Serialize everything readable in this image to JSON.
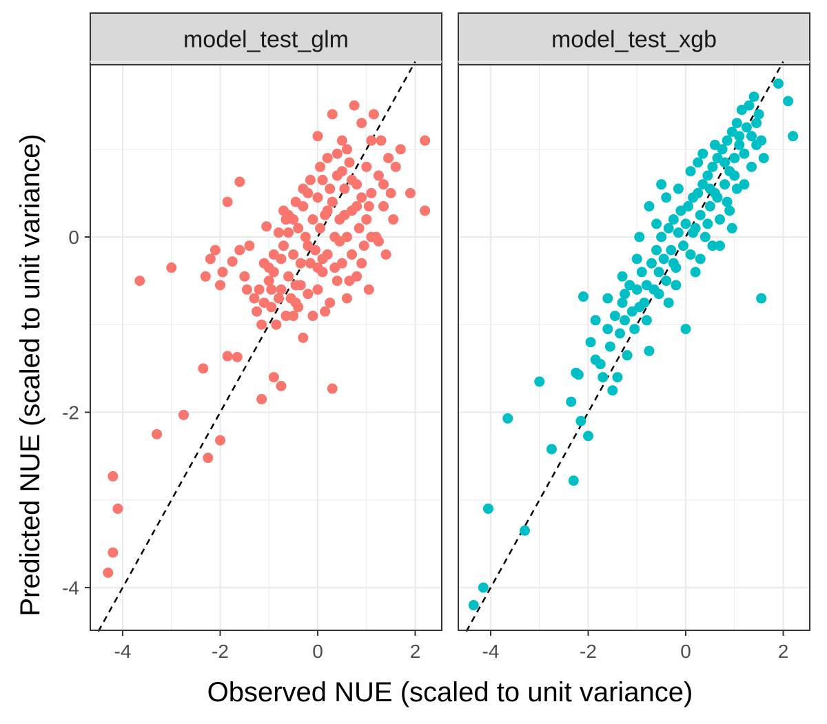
{
  "chart_data": {
    "type": "scatter",
    "xlabel": "Observed NUE (scaled to unit variance)",
    "ylabel": "Predicted NUE (scaled to unit variance)",
    "xlim": [
      -4.5,
      2.5
    ],
    "ylim": [
      -4.5,
      2.0
    ],
    "x_ticks": [
      -4,
      -2,
      0,
      2
    ],
    "y_ticks": [
      -4,
      -2,
      0
    ],
    "grid": true,
    "reference_line": {
      "slope": 1,
      "intercept": 0,
      "style": "dashed",
      "color": "#000000"
    },
    "panels": [
      {
        "name": "model_test_glm",
        "color": "#F8766D",
        "points": [
          [
            -4.3,
            -3.83
          ],
          [
            -4.2,
            -3.6
          ],
          [
            -4.1,
            -3.1
          ],
          [
            -4.2,
            -2.73
          ],
          [
            -3.3,
            -2.25
          ],
          [
            -2.75,
            -2.03
          ],
          [
            -2.25,
            -2.52
          ],
          [
            -2.0,
            -2.32
          ],
          [
            -2.35,
            -1.5
          ],
          [
            -1.85,
            -1.36
          ],
          [
            -1.65,
            -1.37
          ],
          [
            -3.65,
            -0.5
          ],
          [
            -3.0,
            -0.35
          ],
          [
            -2.3,
            -0.45
          ],
          [
            -2.1,
            -0.15
          ],
          [
            -2.0,
            -0.55
          ],
          [
            -1.95,
            -0.4
          ],
          [
            -2.2,
            -0.25
          ],
          [
            -1.75,
            -0.28
          ],
          [
            -1.6,
            -0.15
          ],
          [
            -1.5,
            -0.45
          ],
          [
            -1.45,
            -0.6
          ],
          [
            -1.6,
            0.63
          ],
          [
            -1.85,
            0.4
          ],
          [
            -1.4,
            -0.1
          ],
          [
            -1.3,
            -0.7
          ],
          [
            -1.25,
            -0.85
          ],
          [
            -1.15,
            -1.0
          ],
          [
            -1.2,
            -0.6
          ],
          [
            -1.1,
            -0.3
          ],
          [
            -1.05,
            0.12
          ],
          [
            -1.0,
            -0.5
          ],
          [
            -0.95,
            -0.8
          ],
          [
            -0.9,
            -0.2
          ],
          [
            -0.9,
            -0.4
          ],
          [
            -0.85,
            -1.0
          ],
          [
            -0.8,
            -0.7
          ],
          [
            -0.75,
            -0.6
          ],
          [
            -0.7,
            -0.1
          ],
          [
            -0.7,
            0.3
          ],
          [
            -0.65,
            -0.9
          ],
          [
            -0.6,
            -0.45
          ],
          [
            -0.6,
            0.05
          ],
          [
            -0.55,
            -0.7
          ],
          [
            -0.5,
            -0.2
          ],
          [
            -0.5,
            0.2
          ],
          [
            -0.45,
            -0.55
          ],
          [
            -0.4,
            0.1
          ],
          [
            -0.4,
            -0.8
          ],
          [
            -0.35,
            -0.3
          ],
          [
            -0.3,
            0.35
          ],
          [
            -0.3,
            -1.15
          ],
          [
            -0.25,
            0.0
          ],
          [
            -0.2,
            -0.65
          ],
          [
            -0.2,
            0.5
          ],
          [
            -0.15,
            -0.3
          ],
          [
            -0.1,
            0.2
          ],
          [
            -0.1,
            -0.9
          ],
          [
            -0.05,
            -0.15
          ],
          [
            0.0,
            0.45
          ],
          [
            0.0,
            -0.6
          ],
          [
            0.05,
            0.1
          ],
          [
            0.1,
            -0.4
          ],
          [
            0.1,
            0.65
          ],
          [
            0.15,
            0.25
          ],
          [
            0.2,
            -0.2
          ],
          [
            0.2,
            0.9
          ],
          [
            0.25,
            -0.75
          ],
          [
            0.3,
            0.4
          ],
          [
            0.3,
            -1.73
          ],
          [
            0.35,
            0.0
          ],
          [
            0.4,
            0.7
          ],
          [
            0.4,
            -0.5
          ],
          [
            0.45,
            0.2
          ],
          [
            0.5,
            1.1
          ],
          [
            0.5,
            -0.3
          ],
          [
            0.55,
            0.55
          ],
          [
            0.6,
            0.0
          ],
          [
            0.6,
            -0.7
          ],
          [
            0.65,
            0.85
          ],
          [
            0.7,
            0.3
          ],
          [
            0.7,
            -0.2
          ],
          [
            0.75,
            1.5
          ],
          [
            0.8,
            0.6
          ],
          [
            0.8,
            -0.45
          ],
          [
            0.85,
            0.1
          ],
          [
            0.9,
            1.3
          ],
          [
            0.9,
            0.45
          ],
          [
            0.95,
            -0.1
          ],
          [
            1.0,
            0.8
          ],
          [
            1.0,
            0.2
          ],
          [
            1.05,
            -0.6
          ],
          [
            1.1,
            1.1
          ],
          [
            1.1,
            0.5
          ],
          [
            1.15,
            1.4
          ],
          [
            1.2,
            0.0
          ],
          [
            1.25,
            0.7
          ],
          [
            1.3,
            1.1
          ],
          [
            1.35,
            0.35
          ],
          [
            1.4,
            -0.2
          ],
          [
            1.45,
            0.9
          ],
          [
            1.5,
            0.5
          ],
          [
            1.55,
            0.2
          ],
          [
            1.6,
            0.8
          ],
          [
            1.7,
            1.0
          ],
          [
            1.9,
            0.5
          ],
          [
            2.2,
            1.1
          ],
          [
            2.2,
            0.3
          ],
          [
            0.3,
            1.4
          ],
          [
            0.0,
            1.15
          ],
          [
            -0.3,
            0.55
          ],
          [
            -0.6,
            0.25
          ],
          [
            -0.8,
            0.05
          ],
          [
            -1.0,
            -0.35
          ],
          [
            0.6,
            1.0
          ],
          [
            0.2,
            0.3
          ],
          [
            -0.2,
            -0.1
          ],
          [
            0.45,
            -0.05
          ],
          [
            0.8,
            0.35
          ],
          [
            -0.45,
            0.4
          ],
          [
            0.1,
            -0.25
          ],
          [
            0.35,
            -0.35
          ],
          [
            1.25,
            -0.05
          ],
          [
            -1.1,
            -0.75
          ],
          [
            -0.35,
            -0.55
          ],
          [
            0.55,
            0.25
          ],
          [
            -0.65,
            0.2
          ],
          [
            0.05,
            0.8
          ],
          [
            0.7,
            0.65
          ],
          [
            1.05,
            0.35
          ],
          [
            -0.15,
            0.65
          ],
          [
            0.25,
            0.55
          ],
          [
            -0.75,
            -0.25
          ],
          [
            0.9,
            -0.3
          ],
          [
            1.35,
            0.6
          ],
          [
            -0.5,
            -0.9
          ],
          [
            0.4,
            0.95
          ],
          [
            0.15,
            -0.85
          ],
          [
            -0.95,
            -0.6
          ],
          [
            0.65,
            -0.5
          ],
          [
            -1.15,
            -1.85
          ],
          [
            -0.9,
            -1.6
          ],
          [
            -0.75,
            -1.7
          ],
          [
            -0.45,
            -0.75
          ],
          [
            0.0,
            -0.35
          ],
          [
            0.5,
            0.75
          ],
          [
            1.1,
            0.0
          ]
        ]
      },
      {
        "name": "model_test_xgb",
        "color": "#00BFC4",
        "points": [
          [
            -4.35,
            -4.2
          ],
          [
            -4.15,
            -4.0
          ],
          [
            -4.05,
            -3.1
          ],
          [
            -3.3,
            -3.35
          ],
          [
            -3.65,
            -2.07
          ],
          [
            -3.0,
            -1.65
          ],
          [
            -2.75,
            -2.42
          ],
          [
            -2.3,
            -2.78
          ],
          [
            -2.15,
            -2.1
          ],
          [
            -2.0,
            -2.27
          ],
          [
            -2.35,
            -1.88
          ],
          [
            -2.25,
            -1.55
          ],
          [
            -2.2,
            -1.57
          ],
          [
            -2.1,
            -0.68
          ],
          [
            -1.95,
            -1.2
          ],
          [
            -1.85,
            -1.4
          ],
          [
            -1.75,
            -1.45
          ],
          [
            -1.7,
            -1.6
          ],
          [
            -1.6,
            -1.05
          ],
          [
            -1.55,
            -1.25
          ],
          [
            -1.5,
            -1.75
          ],
          [
            -1.45,
            -0.9
          ],
          [
            -1.4,
            -1.6
          ],
          [
            -1.35,
            -1.1
          ],
          [
            -1.3,
            -0.75
          ],
          [
            -1.25,
            -0.95
          ],
          [
            -1.2,
            -1.35
          ],
          [
            -1.15,
            -0.55
          ],
          [
            -1.1,
            -0.85
          ],
          [
            -1.05,
            -1.05
          ],
          [
            -1.0,
            -0.6
          ],
          [
            -0.95,
            -0.8
          ],
          [
            -0.9,
            -0.4
          ],
          [
            -0.85,
            -0.75
          ],
          [
            -0.8,
            -0.55
          ],
          [
            -0.75,
            -1.3
          ],
          [
            -0.7,
            -0.3
          ],
          [
            -0.65,
            -0.6
          ],
          [
            -0.6,
            -0.15
          ],
          [
            -0.55,
            -0.4
          ],
          [
            -0.5,
            0.0
          ],
          [
            -0.45,
            -0.25
          ],
          [
            -0.4,
            -0.5
          ],
          [
            -0.35,
            0.1
          ],
          [
            -0.3,
            -0.15
          ],
          [
            -0.25,
            0.2
          ],
          [
            -0.2,
            -0.35
          ],
          [
            -0.15,
            0.05
          ],
          [
            -0.1,
            0.3
          ],
          [
            -0.05,
            -0.1
          ],
          [
            0.0,
            0.15
          ],
          [
            0.05,
            0.35
          ],
          [
            0.1,
            -0.2
          ],
          [
            0.15,
            0.45
          ],
          [
            0.2,
            0.1
          ],
          [
            0.25,
            0.5
          ],
          [
            0.3,
            0.25
          ],
          [
            0.35,
            0.6
          ],
          [
            0.4,
            0.0
          ],
          [
            0.45,
            0.7
          ],
          [
            0.5,
            0.35
          ],
          [
            0.55,
            0.8
          ],
          [
            0.6,
            0.5
          ],
          [
            0.65,
            0.9
          ],
          [
            0.7,
            0.2
          ],
          [
            0.75,
            1.0
          ],
          [
            0.8,
            0.6
          ],
          [
            0.85,
            1.1
          ],
          [
            0.9,
            0.75
          ],
          [
            0.95,
            1.2
          ],
          [
            1.0,
            0.9
          ],
          [
            1.05,
            1.3
          ],
          [
            1.1,
            1.05
          ],
          [
            1.15,
            1.45
          ],
          [
            1.2,
            0.95
          ],
          [
            1.25,
            1.25
          ],
          [
            1.3,
            1.5
          ],
          [
            1.35,
            1.15
          ],
          [
            1.4,
            1.6
          ],
          [
            1.45,
            1.3
          ],
          [
            1.5,
            1.4
          ],
          [
            1.55,
            1.1
          ],
          [
            1.6,
            0.9
          ],
          [
            1.9,
            1.75
          ],
          [
            2.1,
            1.55
          ],
          [
            2.2,
            1.15
          ],
          [
            1.55,
            -0.7
          ],
          [
            0.0,
            -1.05
          ],
          [
            -0.5,
            0.6
          ],
          [
            0.3,
            -0.25
          ],
          [
            -0.2,
            -0.55
          ],
          [
            0.7,
            -0.1
          ],
          [
            0.9,
            0.3
          ],
          [
            1.2,
            0.6
          ],
          [
            1.05,
            0.55
          ],
          [
            0.6,
            1.05
          ],
          [
            0.35,
            0.95
          ],
          [
            -1.3,
            -0.45
          ],
          [
            -0.95,
            0.0
          ],
          [
            -0.75,
            0.35
          ],
          [
            -0.6,
            0.15
          ],
          [
            -0.35,
            -0.75
          ],
          [
            0.1,
            0.75
          ],
          [
            0.45,
            0.15
          ],
          [
            0.85,
            0.4
          ],
          [
            -1.6,
            -0.7
          ],
          [
            -1.25,
            -0.65
          ],
          [
            -0.4,
            0.45
          ],
          [
            0.2,
            -0.4
          ],
          [
            0.55,
            -0.1
          ],
          [
            0.95,
            0.1
          ],
          [
            1.35,
            0.8
          ],
          [
            -0.8,
            -0.95
          ],
          [
            -0.55,
            -0.65
          ],
          [
            -0.25,
            -0.3
          ],
          [
            0.15,
            0.05
          ],
          [
            0.5,
            0.55
          ],
          [
            0.8,
            0.85
          ],
          [
            1.1,
            1.15
          ],
          [
            -1.85,
            -0.95
          ],
          [
            -1.0,
            -0.25
          ],
          [
            -0.15,
            0.55
          ],
          [
            0.25,
            0.85
          ],
          [
            0.65,
            0.45
          ],
          [
            1.0,
            0.7
          ],
          [
            1.45,
            1.05
          ]
        ]
      }
    ]
  }
}
